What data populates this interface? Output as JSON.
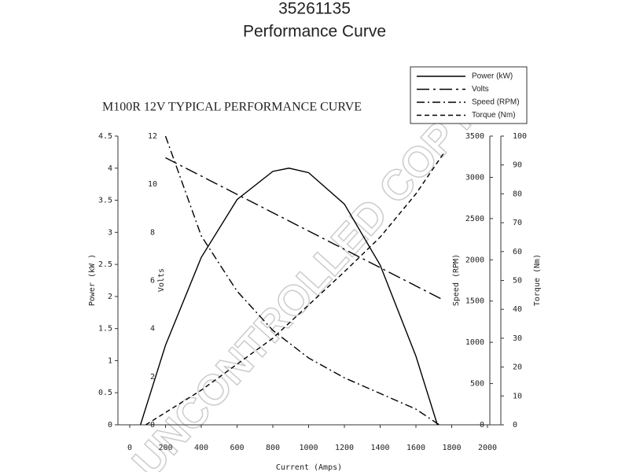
{
  "chart_data": {
    "type": "line",
    "title": "35261135",
    "subtitle": "Performance Curve",
    "chart_title": "M100R 12V TYPICAL PERFORMANCE CURVE",
    "watermark": "UNCONTROLLED COPY",
    "xlabel": "Current (Amps)",
    "xlim": [
      0,
      2000
    ],
    "xticks": [
      0,
      200,
      400,
      600,
      800,
      1000,
      1200,
      1400,
      1600,
      1800,
      2000
    ],
    "y_axes": [
      {
        "label": "Power (kW )",
        "lim": [
          0,
          4.5
        ],
        "ticks": [
          0,
          0.5,
          1,
          1.5,
          2,
          2.5,
          3,
          3.5,
          4,
          4.5
        ]
      },
      {
        "label": "Volts",
        "lim": [
          0,
          12
        ],
        "ticks": [
          0,
          2,
          4,
          6,
          8,
          10,
          12
        ]
      },
      {
        "label": "Speed (RPM)",
        "lim": [
          0,
          3500
        ],
        "ticks": [
          0,
          500,
          1000,
          1500,
          2000,
          2500,
          3000,
          3500
        ]
      },
      {
        "label": "Torque (Nm)",
        "lim": [
          0,
          100
        ],
        "ticks": [
          0,
          10,
          20,
          30,
          40,
          50,
          60,
          70,
          80,
          90,
          100
        ]
      }
    ],
    "series": [
      {
        "name": "Power (kW)",
        "color": "#000000",
        "dash": "solid",
        "axis": 0,
        "x": [
          60,
          200,
          400,
          600,
          800,
          890,
          1000,
          1200,
          1400,
          1600,
          1720
        ],
        "values": [
          0,
          1.24,
          2.61,
          3.51,
          3.95,
          4,
          3.93,
          3.44,
          2.49,
          1.07,
          0
        ]
      },
      {
        "name": "Volts",
        "color": "#000000",
        "dash": "longdashdot",
        "axis": 1,
        "x": [
          200,
          1750
        ],
        "values": [
          11.1,
          5.2
        ]
      },
      {
        "name": "Speed (RPM)",
        "color": "#000000",
        "dash": "dashdot",
        "axis": 2,
        "x": [
          200,
          400,
          600,
          800,
          1000,
          1200,
          1400,
          1600,
          1730
        ],
        "values": [
          3500,
          2290,
          1620,
          1145,
          810,
          570,
          380,
          190,
          0
        ]
      },
      {
        "name": "Torque (Nm)",
        "color": "#000000",
        "dash": "dashed",
        "axis": 3,
        "x": [
          90,
          400,
          800,
          1200,
          1400,
          1600,
          1760
        ],
        "values": [
          0,
          12,
          30,
          53,
          65,
          80,
          94.5
        ]
      }
    ]
  }
}
